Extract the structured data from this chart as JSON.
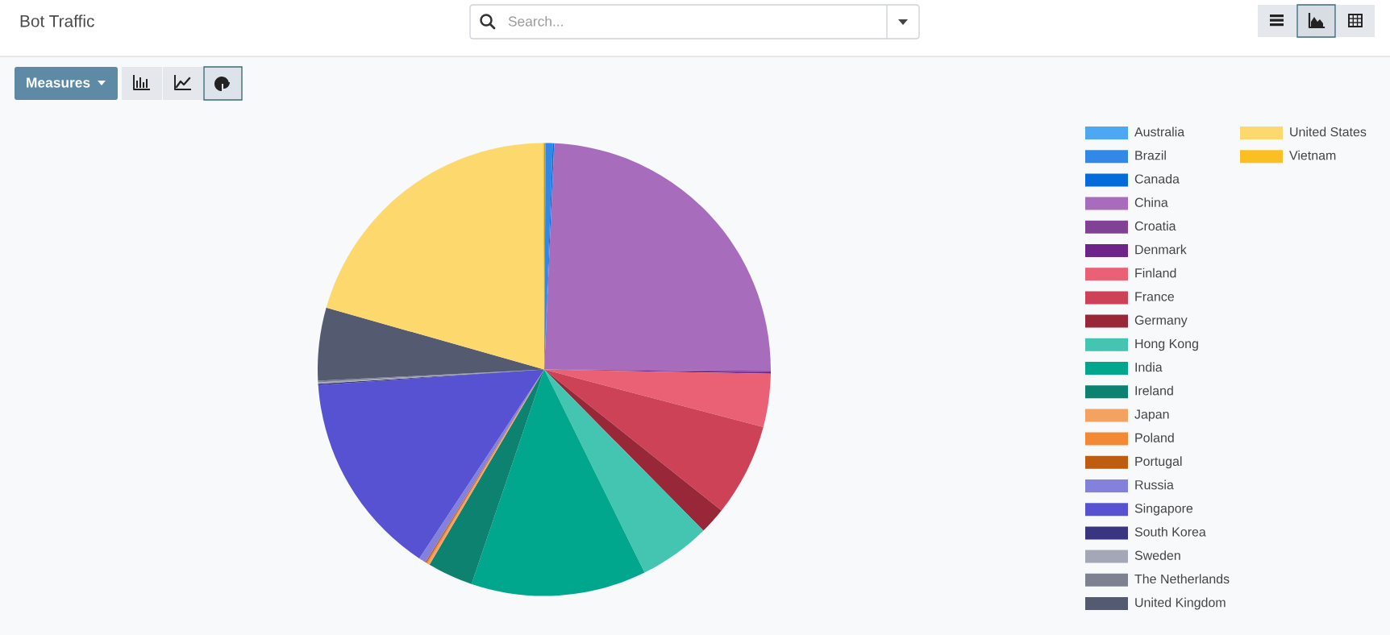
{
  "chart_data": {
    "type": "pie",
    "title": "Bot Traffic",
    "categories": [
      "Australia",
      "Brazil",
      "Canada",
      "China",
      "Croatia",
      "Denmark",
      "Finland",
      "France",
      "Germany",
      "Hong Kong",
      "India",
      "Ireland",
      "Japan",
      "Poland",
      "Portugal",
      "Russia",
      "Singapore",
      "South Korea",
      "Sweden",
      "The Netherlands",
      "United Kingdom",
      "United States",
      "Vietnam"
    ],
    "values": [
      0.1,
      0.5,
      0.1,
      24.4,
      0.1,
      0.1,
      3.8,
      6.6,
      1.9,
      5.1,
      12.5,
      3.25,
      0.15,
      0.1,
      0.1,
      0.5,
      14.6,
      0.1,
      0.1,
      0.1,
      5.2,
      20.5,
      0.1
    ],
    "colors": [
      "#4ea7f2",
      "#3188e6",
      "#056bd9",
      "#a76dbc",
      "#7f4295",
      "#6d2387",
      "#ea6175",
      "#ce4257",
      "#982738",
      "#43c5b1",
      "#00a78d",
      "#0e8270",
      "#f4a261",
      "#f48935",
      "#be5d10",
      "#8481dd",
      "#5752d1",
      "#3a3580",
      "#a4a8b6",
      "#7e8290",
      "#545b70",
      "#fdd86d",
      "#fbbf24"
    ],
    "legend": "right",
    "annotations": [
      "Search...",
      "Measures"
    ]
  }
}
